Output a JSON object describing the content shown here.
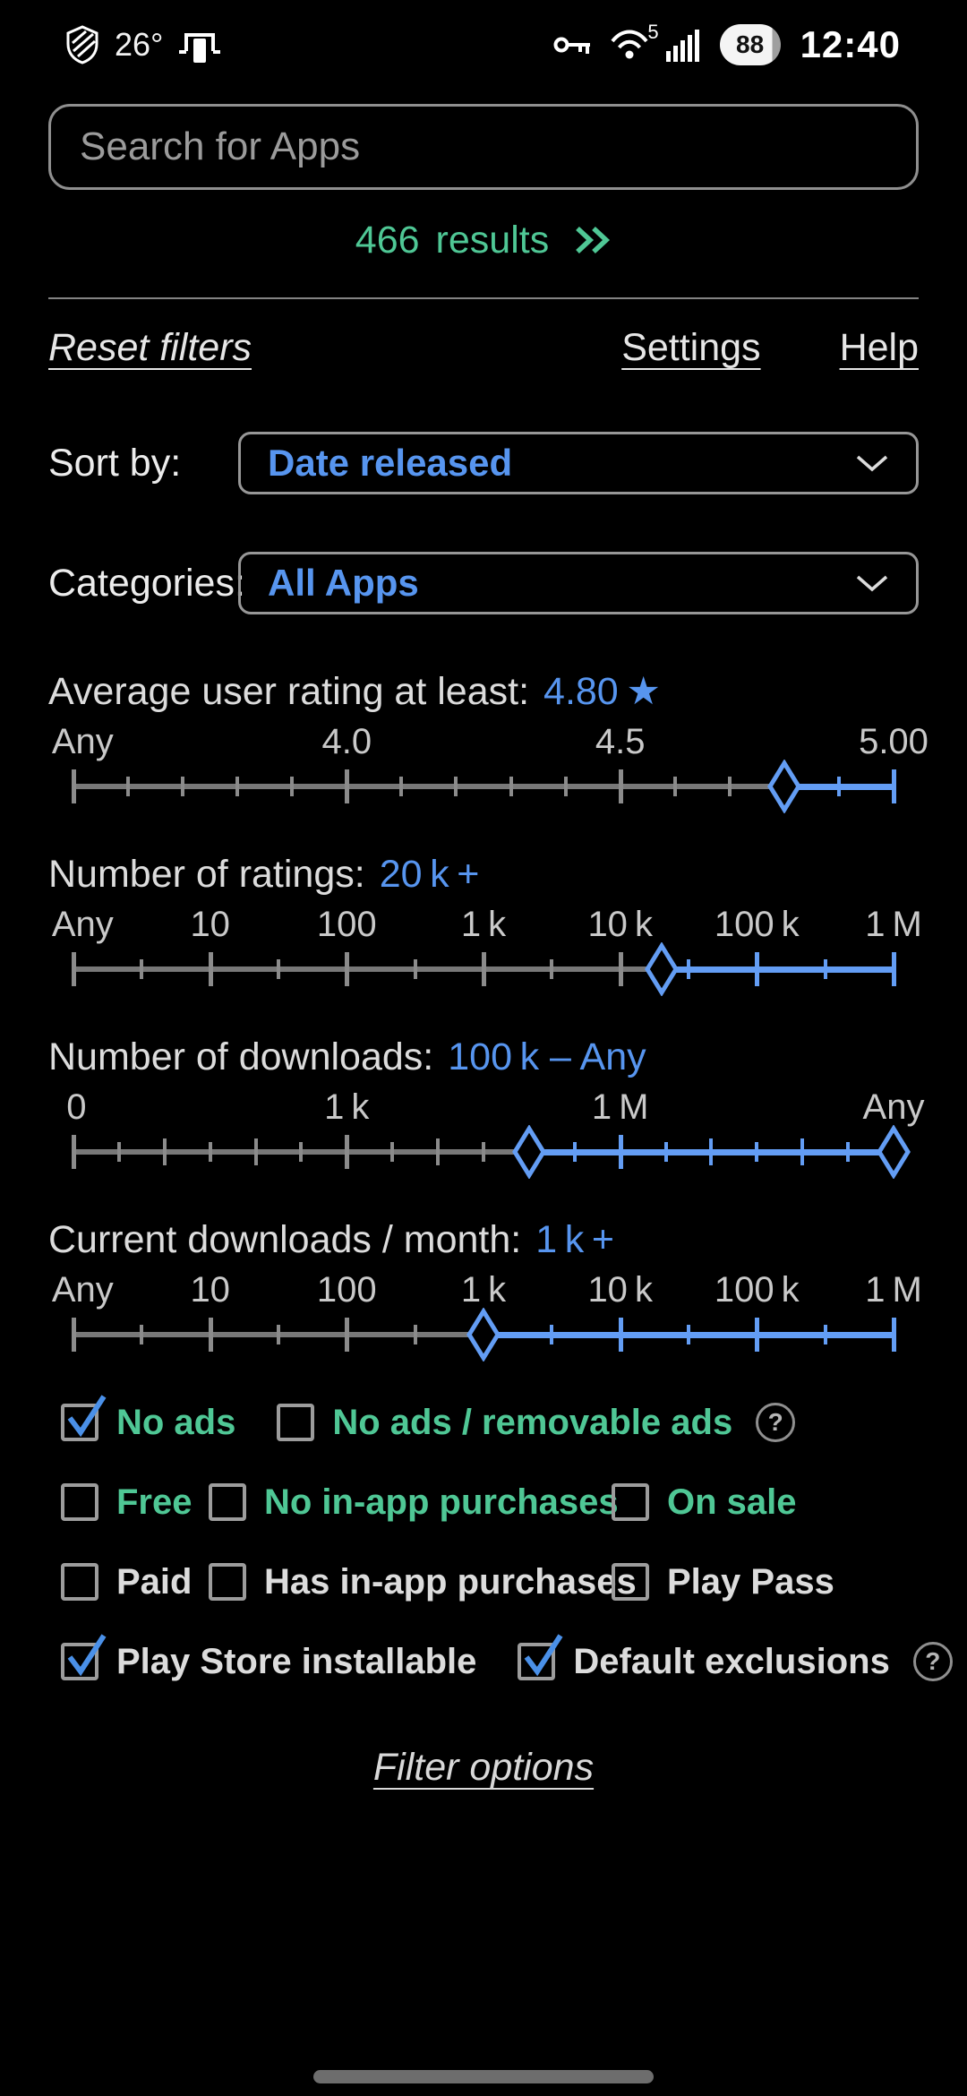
{
  "status_bar": {
    "temperature": "26°",
    "wifi_generation": "5",
    "battery_percent": "88",
    "time": "12:40",
    "icons": [
      "shield-icon",
      "phone-dock-icon",
      "vpn-key-icon",
      "wifi-icon",
      "signal-bars-icon",
      "battery-pill"
    ]
  },
  "search": {
    "placeholder": "Search for Apps",
    "value": ""
  },
  "results": {
    "count": "466",
    "label": "results",
    "icon": "double-chevron-right-icon"
  },
  "toolbar": {
    "reset": "Reset filters",
    "settings": "Settings",
    "help": "Help"
  },
  "dropdowns": [
    {
      "label": "Sort by:",
      "value": "Date released"
    },
    {
      "label": "Categories:",
      "value": "All Apps"
    }
  ],
  "sliders": [
    {
      "title": "Average user rating at least:",
      "value": "4.80 ★",
      "scale_labels": [
        {
          "text": "Any",
          "pos": 0
        },
        {
          "text": "4.0",
          "pos": 33.33
        },
        {
          "text": "4.5",
          "pos": 66.67
        },
        {
          "text": "5.00",
          "pos": 100
        }
      ],
      "segments": 15,
      "major_every": 5,
      "handles": [
        86.67
      ],
      "active": [
        86.67,
        100
      ],
      "left_cap": true,
      "right_cap": true
    },
    {
      "title": "Number of ratings:",
      "value": "20 k +",
      "scale_labels": [
        {
          "text": "Any",
          "pos": 0
        },
        {
          "text": "10",
          "pos": 16.67
        },
        {
          "text": "100",
          "pos": 33.33
        },
        {
          "text": "1 k",
          "pos": 50
        },
        {
          "text": "10 k",
          "pos": 66.67
        },
        {
          "text": "100 k",
          "pos": 83.33
        },
        {
          "text": "1 M",
          "pos": 100
        }
      ],
      "segments": 12,
      "major_every": 2,
      "handles": [
        71.7
      ],
      "active": [
        71.7,
        100
      ],
      "left_cap": true,
      "right_cap": true
    },
    {
      "title": "Number of downloads:",
      "value": "100 k – Any",
      "scale_labels": [
        {
          "text": "0",
          "pos": 0
        },
        {
          "text": "1 k",
          "pos": 33.33
        },
        {
          "text": "1 M",
          "pos": 66.67
        },
        {
          "text": "Any",
          "pos": 100
        }
      ],
      "segments": 18,
      "major_every": 6,
      "medium_every": 2,
      "handles": [
        55.56,
        100
      ],
      "active": [
        55.56,
        100
      ],
      "left_cap": true,
      "right_cap": false
    },
    {
      "title": "Current downloads / month:",
      "value": "1 k +",
      "scale_labels": [
        {
          "text": "Any",
          "pos": 0
        },
        {
          "text": "10",
          "pos": 16.67
        },
        {
          "text": "100",
          "pos": 33.33
        },
        {
          "text": "1 k",
          "pos": 50
        },
        {
          "text": "10 k",
          "pos": 66.67
        },
        {
          "text": "100 k",
          "pos": 83.33
        },
        {
          "text": "1 M",
          "pos": 100
        }
      ],
      "segments": 12,
      "major_every": 2,
      "handles": [
        50
      ],
      "active": [
        50,
        100
      ],
      "left_cap": true,
      "right_cap": true
    }
  ],
  "checkbox_rows": [
    {
      "grid": false,
      "items": [
        {
          "label": "No ads",
          "checked": true,
          "green": true
        },
        {
          "label": "No ads / removable ads",
          "checked": false,
          "green": true,
          "help": true
        }
      ]
    },
    {
      "grid": true,
      "items": [
        {
          "label": "Free",
          "checked": false,
          "green": true
        },
        {
          "label": "No in-app purchases",
          "checked": false,
          "green": true
        },
        {
          "label": "On sale",
          "checked": false,
          "green": true
        }
      ]
    },
    {
      "grid": true,
      "items": [
        {
          "label": "Paid",
          "checked": false,
          "green": false
        },
        {
          "label": "Has in-app purchases",
          "checked": false,
          "green": false
        },
        {
          "label": "Play Pass",
          "checked": false,
          "green": false
        }
      ]
    },
    {
      "grid": false,
      "items": [
        {
          "label": "Play Store installable",
          "checked": true,
          "green": false
        },
        {
          "label": "Default exclusions",
          "checked": true,
          "green": false,
          "help": true
        }
      ]
    }
  ],
  "footer": {
    "filter_options": "Filter options"
  },
  "colors": {
    "accent_blue": "#5795ef",
    "slider_blue": "#639df4",
    "accent_green": "#4fc795",
    "track_gray": "#787878"
  }
}
